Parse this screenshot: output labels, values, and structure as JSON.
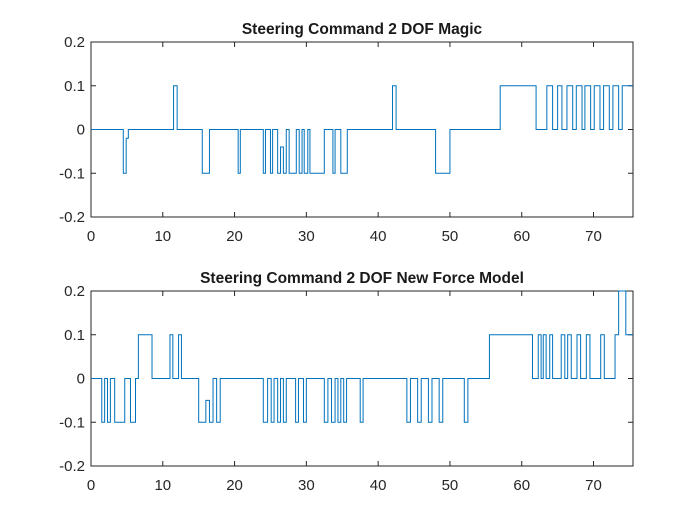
{
  "chart_data": [
    {
      "type": "line",
      "step": true,
      "title": "Steering Command 2 DOF Magic",
      "xlabel": "",
      "ylabel": "",
      "xlim": [
        0,
        75.5
      ],
      "ylim": [
        -0.2,
        0.2
      ],
      "xticks": [
        0,
        10,
        20,
        30,
        40,
        50,
        60,
        70
      ],
      "yticks": [
        -0.2,
        -0.1,
        0,
        0.1,
        0.2
      ],
      "xtick_labels": [
        "0",
        "10",
        "20",
        "30",
        "40",
        "50",
        "60",
        "70"
      ],
      "ytick_labels": [
        "-0.2",
        "-0.1",
        "0",
        "0.1",
        "0.2"
      ],
      "grid": false,
      "line_color": "#0072BD",
      "series": [
        {
          "x": [
            0,
            4.5,
            4.9,
            5.2,
            11.5,
            12.0,
            15.5,
            16.5,
            20.5,
            20.8,
            24.0,
            24.3,
            25.0,
            25.3,
            26.0,
            26.4,
            26.8,
            27.2,
            27.6,
            28.6,
            29.0,
            29.4,
            29.7,
            30.2,
            30.5,
            32.5,
            33.7,
            34.0,
            34.8,
            35.7,
            42.0,
            42.5,
            48.0,
            50.0,
            57.0,
            62.0,
            63.5,
            64.3,
            65.0,
            65.6,
            66.3,
            67.1,
            67.6,
            68.4,
            68.8,
            69.6,
            70.1,
            70.9,
            71.4,
            72.2,
            72.7,
            73.5,
            74.0,
            75.5
          ],
          "y": [
            0,
            -0.1,
            -0.02,
            0,
            0.1,
            0,
            -0.1,
            0,
            -0.1,
            0,
            -0.1,
            0,
            -0.1,
            0,
            -0.1,
            -0.04,
            -0.1,
            0,
            -0.1,
            0,
            -0.1,
            0,
            -0.1,
            0,
            -0.1,
            0,
            -0.1,
            0,
            -0.1,
            0,
            0.1,
            0,
            -0.1,
            0,
            0.1,
            0,
            0.1,
            0,
            0.1,
            0,
            0.1,
            0,
            0.1,
            0,
            0.1,
            0,
            0.1,
            0,
            0.1,
            0,
            0.1,
            0,
            0.1,
            0.1
          ]
        }
      ]
    },
    {
      "type": "line",
      "step": true,
      "title": "Steering Command 2 DOF New Force Model",
      "xlabel": "",
      "ylabel": "",
      "xlim": [
        0,
        75.5
      ],
      "ylim": [
        -0.2,
        0.2
      ],
      "xticks": [
        0,
        10,
        20,
        30,
        40,
        50,
        60,
        70
      ],
      "yticks": [
        -0.2,
        -0.1,
        0,
        0.1,
        0.2
      ],
      "xtick_labels": [
        "0",
        "10",
        "20",
        "30",
        "40",
        "50",
        "60",
        "70"
      ],
      "ytick_labels": [
        "-0.2",
        "-0.1",
        "0",
        "0.1",
        "0.2"
      ],
      "grid": false,
      "line_color": "#0072BD",
      "series": [
        {
          "x": [
            0,
            1.5,
            1.9,
            2.3,
            2.7,
            3.3,
            4.7,
            5.5,
            6.2,
            6.6,
            8.5,
            11.0,
            11.4,
            12.2,
            12.6,
            15.0,
            16.0,
            16.5,
            17.0,
            17.5,
            18.0,
            24.0,
            24.6,
            25.1,
            25.5,
            26.0,
            26.4,
            26.8,
            27.2,
            28.5,
            28.9,
            29.6,
            30.0,
            32.5,
            33.0,
            33.5,
            34.0,
            34.4,
            34.8,
            35.2,
            35.6,
            37.5,
            37.9,
            44.0,
            44.5,
            45.5,
            46.0,
            47.0,
            47.5,
            48.5,
            49.0,
            52.0,
            52.5,
            55.5,
            61.5,
            62.3,
            62.7,
            63.0,
            63.4,
            63.9,
            64.3,
            65.5,
            66.0,
            66.4,
            66.9,
            67.7,
            68.2,
            69.0,
            69.5,
            71.0,
            71.5,
            73.0,
            73.5,
            74.5,
            75.5
          ],
          "y": [
            0,
            -0.1,
            0,
            -0.1,
            0,
            -0.1,
            0,
            -0.1,
            0,
            0.1,
            0,
            0.1,
            0,
            0.1,
            0,
            -0.1,
            -0.05,
            -0.1,
            0,
            -0.1,
            0,
            -0.1,
            0,
            -0.1,
            0,
            -0.1,
            0,
            -0.1,
            0,
            -0.1,
            0,
            -0.1,
            0,
            -0.1,
            0,
            -0.1,
            0,
            -0.1,
            0,
            -0.1,
            0,
            -0.1,
            0,
            -0.1,
            0,
            -0.1,
            0,
            -0.1,
            0,
            -0.1,
            0,
            -0.1,
            0,
            0.1,
            0,
            0.1,
            0,
            0.1,
            0,
            0.1,
            0,
            0.1,
            0,
            0.1,
            0,
            0.1,
            0,
            0.1,
            0,
            0.1,
            0,
            0.1,
            0.2,
            0.1,
            0.1
          ]
        }
      ]
    }
  ]
}
